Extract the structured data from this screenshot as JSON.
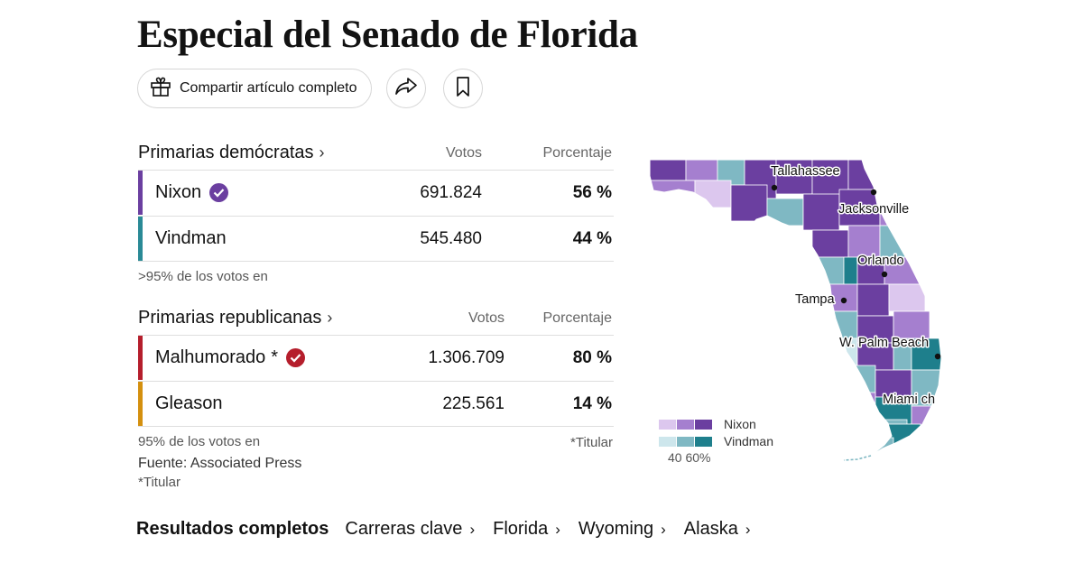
{
  "title": "Especial del Senado de Florida",
  "share": {
    "label": "Compartir artículo completo"
  },
  "icons": {
    "gift": "gift-icon",
    "share": "share-arrow-icon",
    "bookmark": "bookmark-icon",
    "check": "check-icon"
  },
  "democratic": {
    "heading": "Primarias demócratas",
    "chevron": "›",
    "col_votes": "Votos",
    "col_pct": "Porcentaje",
    "candidates": [
      {
        "name": "Nixon",
        "votes": "691.824",
        "pct": "56 %",
        "winner": true,
        "color": "#6b3fa0"
      },
      {
        "name": "Vindman",
        "votes": "545.480",
        "pct": "44 %",
        "winner": false,
        "color": "#2a8a96"
      }
    ],
    "reporting": ">95% de los votos en"
  },
  "republican": {
    "heading": "Primarias republicanas",
    "chevron": "›",
    "col_votes": "Votos",
    "col_pct": "Porcentaje",
    "candidates": [
      {
        "name": "Malhumorado",
        "asterisk": "*",
        "votes": "1.306.709",
        "pct": "80 %",
        "winner": true,
        "color": "#b51e2c"
      },
      {
        "name": "Gleason",
        "votes": "225.561",
        "pct": "14 %",
        "winner": false,
        "color": "#d4900f"
      }
    ],
    "reporting": "95% de los votos en",
    "footnote_right": "*Titular"
  },
  "source": "Fuente: Associated Press",
  "footnote": "*Titular",
  "map": {
    "cities": [
      "Tallahassee",
      "Jacksonville",
      "Orlando",
      "Tampa",
      "W. Palm Beach",
      "Miami ch"
    ],
    "legend": {
      "nixon": "Nixon",
      "vindman": "Vindman",
      "ticks": "40 60%",
      "nixon_colors": [
        "#dcc7ee",
        "#a57fcf",
        "#6b3fa0"
      ],
      "vindman_colors": [
        "#cde6ec",
        "#7fb8c3",
        "#1e7f8c"
      ]
    }
  },
  "bottom_nav": {
    "title": "Resultados completos",
    "links": [
      "Carreras clave",
      "Florida",
      "Wyoming",
      "Alaska"
    ],
    "chevron": "›"
  }
}
